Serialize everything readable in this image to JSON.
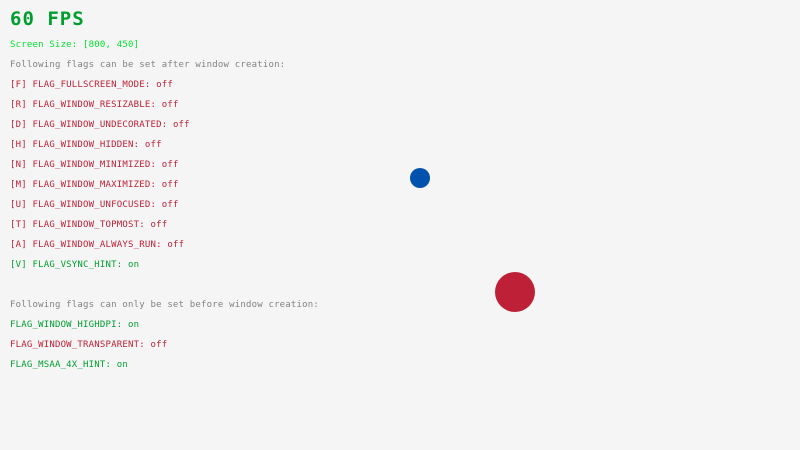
{
  "fps": "60 FPS",
  "screen_size": "Screen Size: [800, 450]",
  "after_header": "Following flags can be set after window creation:",
  "after_flags": [
    {
      "label": "[F] FLAG_FULLSCREEN_MODE: ",
      "state": "off"
    },
    {
      "label": "[R] FLAG_WINDOW_RESIZABLE: ",
      "state": "off"
    },
    {
      "label": "[D] FLAG_WINDOW_UNDECORATED: ",
      "state": "off"
    },
    {
      "label": "[H] FLAG_WINDOW_HIDDEN: ",
      "state": "off"
    },
    {
      "label": "[N] FLAG_WINDOW_MINIMIZED: ",
      "state": "off"
    },
    {
      "label": "[M] FLAG_WINDOW_MAXIMIZED: ",
      "state": "off"
    },
    {
      "label": "[U] FLAG_WINDOW_UNFOCUSED: ",
      "state": "off"
    },
    {
      "label": "[T] FLAG_WINDOW_TOPMOST: ",
      "state": "off"
    },
    {
      "label": "[A] FLAG_WINDOW_ALWAYS_RUN: ",
      "state": "off"
    },
    {
      "label": "[V] FLAG_VSYNC_HINT: ",
      "state": "on"
    }
  ],
  "before_header": "Following flags can only be set before window creation:",
  "before_flags": [
    {
      "label": "FLAG_WINDOW_HIGHDPI: ",
      "state": "on"
    },
    {
      "label": "FLAG_WINDOW_TRANSPARENT: ",
      "state": "off"
    },
    {
      "label": "FLAG_MSAA_4X_HINT: ",
      "state": "on"
    }
  ],
  "colors": {
    "on": "#009e2f",
    "off": "#be2137",
    "info": "#00e430",
    "header": "#828282",
    "fps": "#009e2f",
    "small_ball": "#0052ac",
    "big_ball": "#be2137",
    "background": "#f5f5f5"
  }
}
